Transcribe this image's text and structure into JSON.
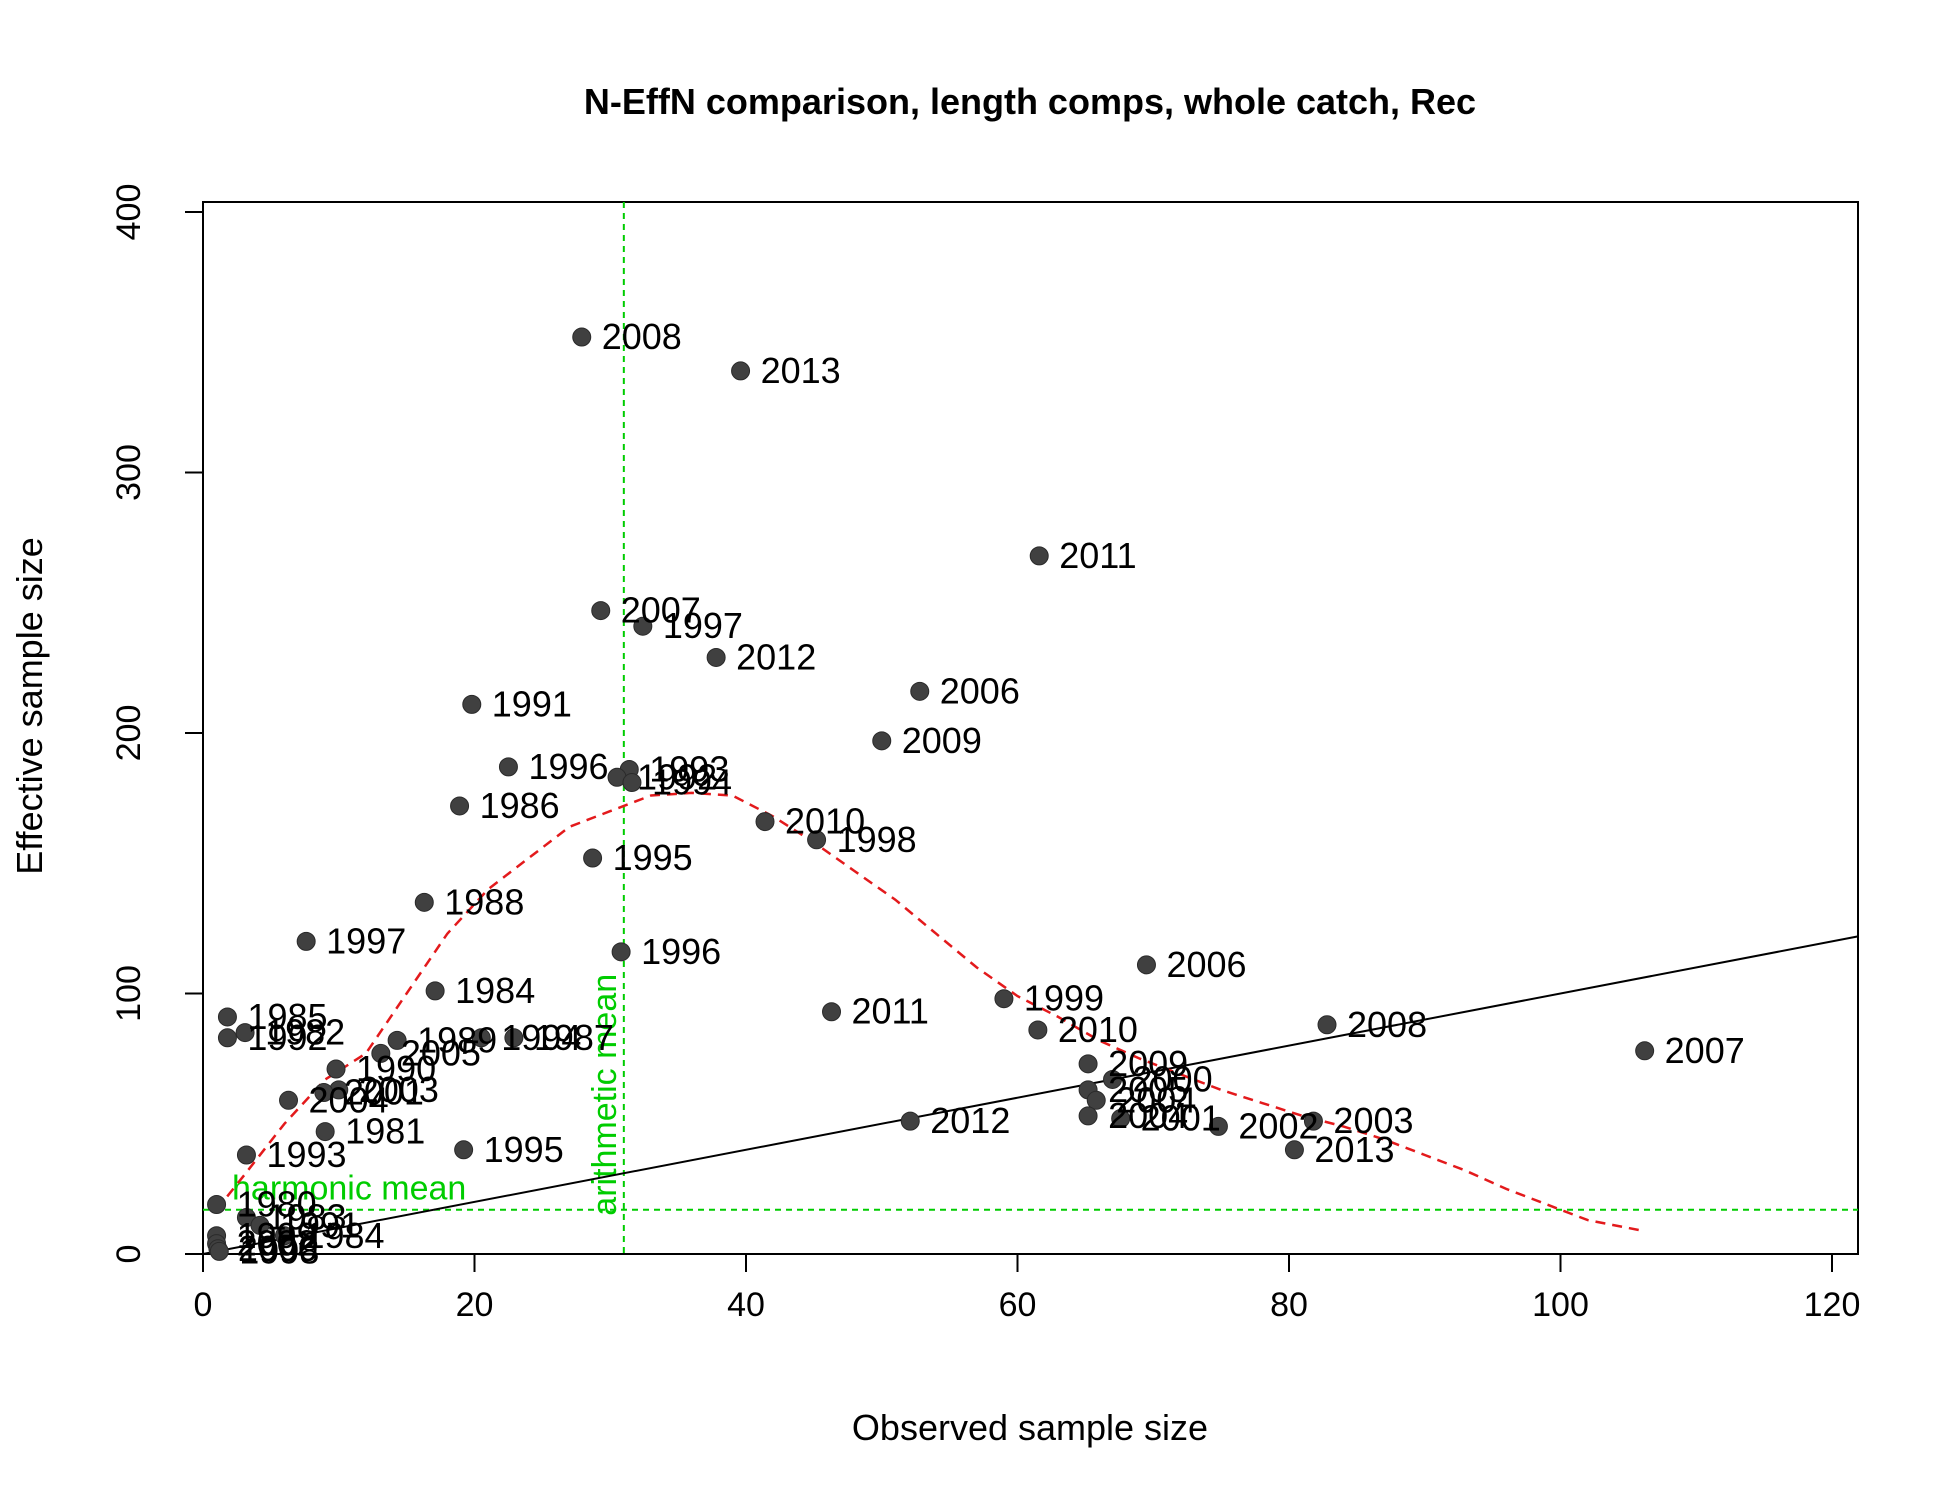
{
  "chart_data": {
    "type": "scatter",
    "title": "N-EffN comparison, length comps, whole catch, Rec",
    "xlabel": "Observed sample size",
    "ylabel": "Effective sample size",
    "xlim": [
      0,
      122
    ],
    "ylim": [
      0,
      400
    ],
    "xticks": [
      "0",
      "20",
      "40",
      "60",
      "80",
      "100",
      "120"
    ],
    "yticks": [
      "0",
      "100",
      "200",
      "300",
      "400"
    ],
    "grid": false,
    "colors": {
      "points": "#404040",
      "one_to_one_line": "#000000",
      "smoother": "#e31a1c",
      "means": "#00cc00"
    },
    "reference_lines": {
      "harmonic_mean": {
        "label": "harmonic mean",
        "y": 17
      },
      "arithmetic_mean": {
        "label": "arithmetic mean",
        "x": 31
      }
    },
    "one_to_one": {
      "x": [
        0,
        122
      ],
      "y": [
        0,
        122
      ]
    },
    "smoother": {
      "x": [
        1,
        3,
        6,
        9,
        12,
        15,
        18,
        21,
        24,
        27,
        30,
        33,
        36,
        39,
        42,
        45,
        48,
        51,
        54,
        57,
        60,
        63,
        66,
        69,
        72,
        75,
        78,
        81,
        84,
        87,
        90,
        93,
        96,
        99,
        102,
        106
      ],
      "y": [
        17,
        30,
        50,
        67,
        77,
        100,
        123,
        140,
        152,
        164,
        170,
        176,
        177,
        176,
        168,
        158,
        147,
        136,
        123,
        110,
        99,
        91,
        82,
        75,
        69,
        63,
        58,
        53,
        49,
        44,
        38,
        32,
        25,
        19,
        13,
        9
      ]
    },
    "points": [
      {
        "label": "2008",
        "x": 27.9,
        "y": 352
      },
      {
        "label": "2013",
        "x": 39.6,
        "y": 339
      },
      {
        "label": "2011",
        "x": 61.6,
        "y": 268
      },
      {
        "label": "2007",
        "x": 29.3,
        "y": 247
      },
      {
        "label": "1997",
        "x": 32.4,
        "y": 241
      },
      {
        "label": "2012",
        "x": 37.8,
        "y": 229
      },
      {
        "label": "2006",
        "x": 52.8,
        "y": 216
      },
      {
        "label": "1991",
        "x": 19.8,
        "y": 211
      },
      {
        "label": "2009",
        "x": 50.0,
        "y": 197
      },
      {
        "label": "1996",
        "x": 22.5,
        "y": 187
      },
      {
        "label": "1993",
        "x": 31.4,
        "y": 186
      },
      {
        "label": "1992",
        "x": 30.5,
        "y": 183
      },
      {
        "label": "1994",
        "x": 31.6,
        "y": 181
      },
      {
        "label": "1986",
        "x": 18.9,
        "y": 172
      },
      {
        "label": "2010",
        "x": 41.4,
        "y": 166
      },
      {
        "label": "1998",
        "x": 45.2,
        "y": 159
      },
      {
        "label": "1995",
        "x": 28.7,
        "y": 152
      },
      {
        "label": "1988",
        "x": 16.3,
        "y": 135
      },
      {
        "label": "1997",
        "x": 7.6,
        "y": 120
      },
      {
        "label": "1996",
        "x": 30.8,
        "y": 116
      },
      {
        "label": "2006",
        "x": 69.5,
        "y": 111
      },
      {
        "label": "1984",
        "x": 17.1,
        "y": 101
      },
      {
        "label": "1999",
        "x": 59.0,
        "y": 98
      },
      {
        "label": "2011",
        "x": 46.3,
        "y": 93
      },
      {
        "label": "1985",
        "x": 1.8,
        "y": 91
      },
      {
        "label": "2008",
        "x": 82.8,
        "y": 88
      },
      {
        "label": "2010",
        "x": 61.5,
        "y": 86
      },
      {
        "label": "1982",
        "x": 3.1,
        "y": 85
      },
      {
        "label": "1992",
        "x": 1.8,
        "y": 83
      },
      {
        "label": "1994",
        "x": 20.5,
        "y": 83
      },
      {
        "label": "1987",
        "x": 22.9,
        "y": 83
      },
      {
        "label": "1989",
        "x": 14.3,
        "y": 82
      },
      {
        "label": "2007",
        "x": 106.2,
        "y": 78
      },
      {
        "label": "2005",
        "x": 13.1,
        "y": 77
      },
      {
        "label": "2009",
        "x": 65.2,
        "y": 73
      },
      {
        "label": "1990",
        "x": 9.8,
        "y": 71
      },
      {
        "label": "2000",
        "x": 67.0,
        "y": 67
      },
      {
        "label": "2003",
        "x": 10.0,
        "y": 63
      },
      {
        "label": "2001",
        "x": 8.9,
        "y": 62
      },
      {
        "label": "2005",
        "x": 65.2,
        "y": 63
      },
      {
        "label": "2004",
        "x": 6.3,
        "y": 59
      },
      {
        "label": "2004",
        "x": 65.8,
        "y": 59
      },
      {
        "label": "2004",
        "x": 65.2,
        "y": 53
      },
      {
        "label": "2001",
        "x": 67.6,
        "y": 52
      },
      {
        "label": "2003",
        "x": 81.8,
        "y": 51
      },
      {
        "label": "2012",
        "x": 52.1,
        "y": 51
      },
      {
        "label": "2002",
        "x": 74.8,
        "y": 49
      },
      {
        "label": "1981",
        "x": 9.0,
        "y": 47
      },
      {
        "label": "2013",
        "x": 80.4,
        "y": 40
      },
      {
        "label": "1995",
        "x": 19.2,
        "y": 40
      },
      {
        "label": "1993",
        "x": 3.2,
        "y": 38
      },
      {
        "label": "1980",
        "x": 1.0,
        "y": 19
      },
      {
        "label": "1983",
        "x": 3.2,
        "y": 14
      },
      {
        "label": "1991",
        "x": 4.2,
        "y": 11
      },
      {
        "label": "1984",
        "x": 6.0,
        "y": 7
      },
      {
        "label": "1999",
        "x": 1.0,
        "y": 7
      },
      {
        "label": "2002",
        "x": 1.0,
        "y": 4
      },
      {
        "label": "2000",
        "x": 1.1,
        "y": 2
      },
      {
        "label": "1998",
        "x": 1.2,
        "y": 1
      }
    ]
  }
}
